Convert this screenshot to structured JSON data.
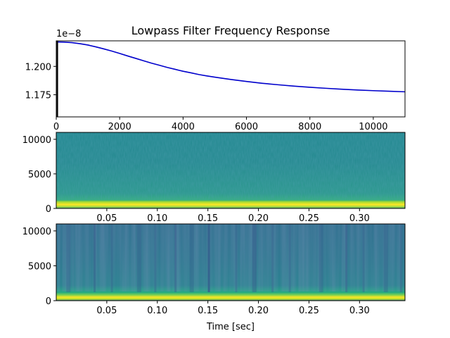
{
  "chart_data": [
    {
      "type": "line",
      "title": "Lowpass Filter Frequency Response",
      "xlabel": "",
      "ylabel": "",
      "scale_label": "1e−8",
      "xlim": [
        0,
        11000
      ],
      "ylim": [
        1.1555,
        1.2225
      ],
      "x_ticks": [
        0,
        2000,
        4000,
        6000,
        8000,
        10000
      ],
      "x_tick_labels": [
        "0",
        "2000",
        "4000",
        "6000",
        "8000",
        "10000"
      ],
      "y_ticks": [
        1.175,
        1.2
      ],
      "y_tick_labels": [
        "1.175",
        "1.200"
      ],
      "line_color": "#0000cc",
      "series": [
        {
          "x": [
            0,
            250,
            500,
            750,
            1000,
            1250,
            1500,
            1750,
            2000,
            2250,
            2500,
            2750,
            3000,
            3250,
            3500,
            3750,
            4000,
            4250,
            4500,
            4750,
            5000,
            5500,
            6000,
            6500,
            7000,
            7500,
            8000,
            8500,
            9000,
            9500,
            10000,
            10500,
            11000
          ],
          "values": [
            1.2215,
            1.2214,
            1.2209,
            1.22,
            1.2188,
            1.2172,
            1.2154,
            1.2135,
            1.2114,
            1.2092,
            1.2071,
            1.205,
            1.2029,
            1.201,
            1.1991,
            1.1974,
            1.1957,
            1.1943,
            1.1928,
            1.1916,
            1.1905,
            1.1885,
            1.1867,
            1.1851,
            1.1838,
            1.1826,
            1.1816,
            1.1807,
            1.1799,
            1.1792,
            1.1786,
            1.1781,
            1.1776
          ]
        }
      ],
      "vertical_line_x": 35
    },
    {
      "type": "heatmap",
      "title": "",
      "xlabel": "",
      "ylabel": "",
      "xlim": [
        0.0,
        0.345
      ],
      "ylim": [
        0,
        11000
      ],
      "x_ticks": [
        0.05,
        0.1,
        0.15,
        0.2,
        0.25,
        0.3
      ],
      "x_tick_labels": [
        "0.05",
        "0.10",
        "0.15",
        "0.20",
        "0.25",
        "0.30"
      ],
      "y_ticks": [
        0,
        5000,
        10000
      ],
      "y_tick_labels": [
        "0",
        "5000",
        "10000"
      ],
      "colormap": "viridis"
    },
    {
      "type": "heatmap",
      "title": "",
      "xlabel": "Time [sec]",
      "ylabel": "",
      "xlim": [
        0.0,
        0.345
      ],
      "ylim": [
        0,
        11000
      ],
      "x_ticks": [
        0.05,
        0.1,
        0.15,
        0.2,
        0.25,
        0.3
      ],
      "x_tick_labels": [
        "0.05",
        "0.10",
        "0.15",
        "0.20",
        "0.25",
        "0.30"
      ],
      "y_ticks": [
        0,
        5000,
        10000
      ],
      "y_tick_labels": [
        "0",
        "5000",
        "10000"
      ],
      "colormap": "viridis"
    }
  ]
}
